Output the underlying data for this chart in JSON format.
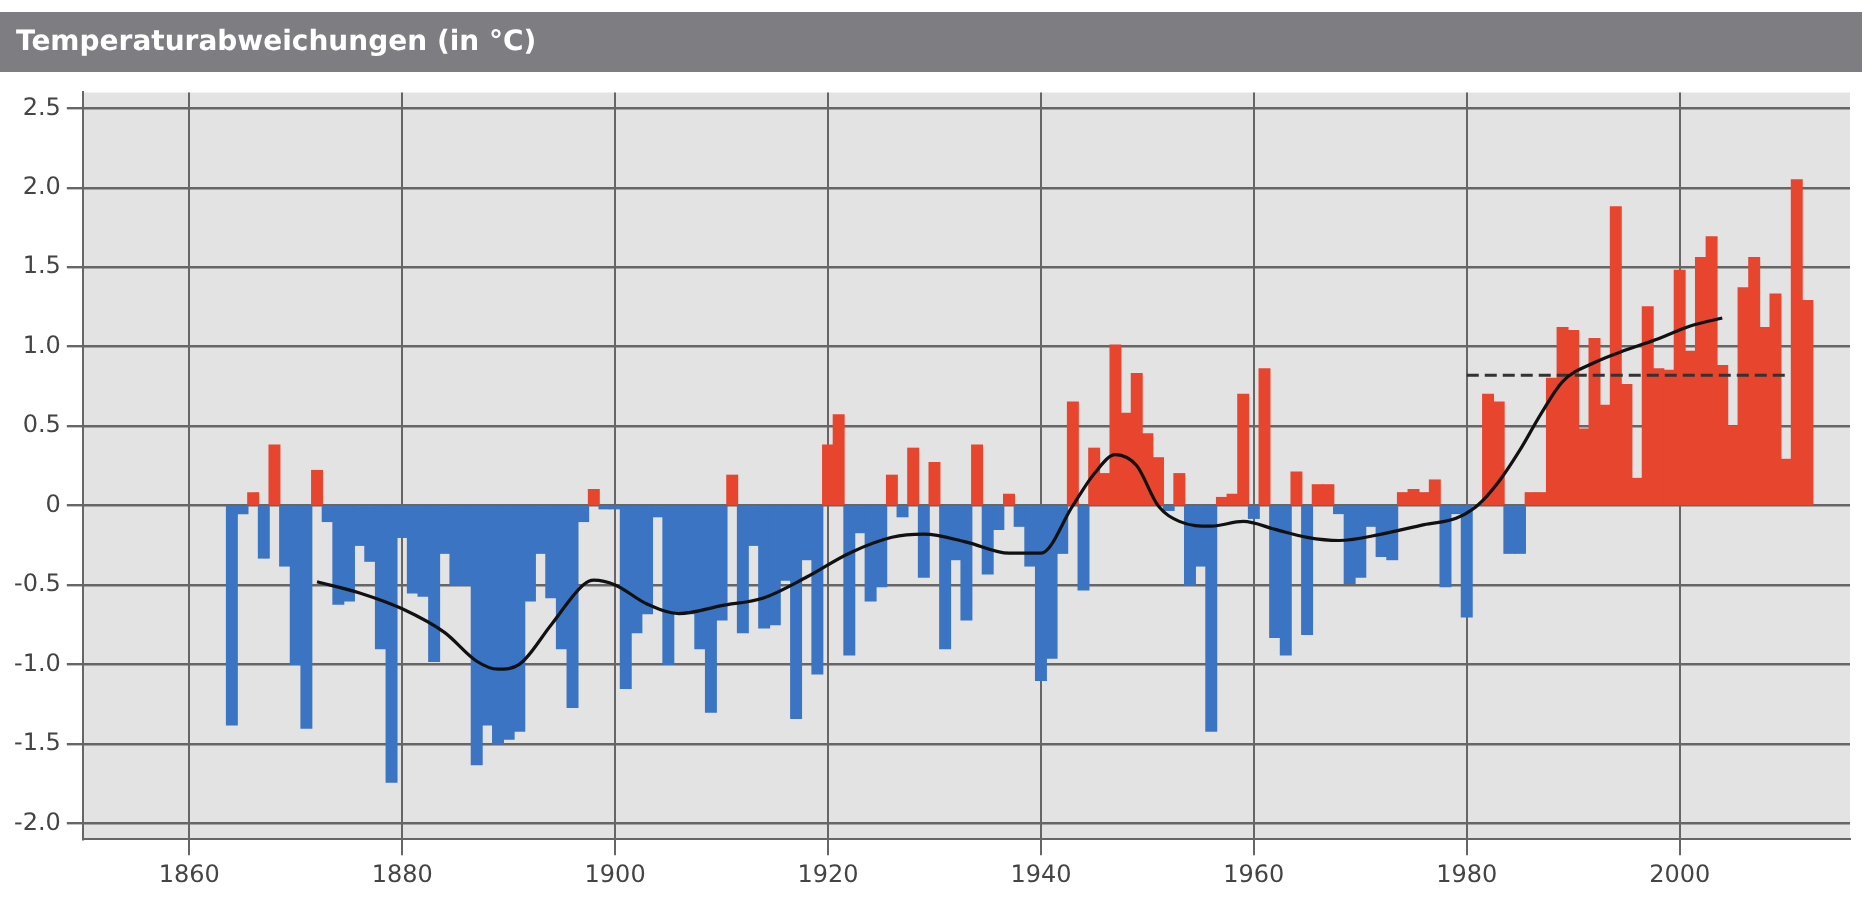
{
  "chart_data": {
    "type": "bar",
    "title": "Temperaturabweichungen (in °C)",
    "xlim": [
      1850,
      2016
    ],
    "xticks": [
      1860,
      1880,
      1900,
      1920,
      1940,
      1960,
      1980,
      2000
    ],
    "ylim": [
      -2.1,
      2.6
    ],
    "yticks": [
      {
        "value": -2,
        "label": "-2.0"
      },
      -1.5,
      {
        "value": -1,
        "label": "-1.0"
      },
      -0.5,
      0,
      0.5,
      {
        "value": 1,
        "label": "1.0"
      },
      1.5,
      {
        "value": 2,
        "label": "2.0"
      },
      2.5
    ],
    "grid": true,
    "legend": false,
    "marker": "none",
    "series": [
      {
        "x": [
          1864,
          1865,
          1866,
          1867,
          1868,
          1869,
          1870,
          1871,
          1872,
          1873,
          1874,
          1875,
          1876,
          1877,
          1878,
          1879,
          1880,
          1881,
          1882,
          1883,
          1884,
          1885,
          1886,
          1887,
          1888,
          1889,
          1890,
          1891,
          1892,
          1893,
          1894,
          1895,
          1896,
          1897,
          1898,
          1899,
          1900,
          1901,
          1902,
          1903,
          1904,
          1905,
          1906,
          1907,
          1908,
          1909,
          1910,
          1911,
          1912,
          1913,
          1914,
          1915,
          1916,
          1917,
          1918,
          1919,
          1920,
          1921,
          1922,
          1923,
          1924,
          1925,
          1926,
          1927,
          1928,
          1929,
          1930,
          1931,
          1932,
          1933,
          1934,
          1935,
          1936,
          1937,
          1938,
          1939,
          1940,
          1941,
          1942,
          1943,
          1944,
          1945,
          1946,
          1947,
          1948,
          1949,
          1950,
          1951,
          1952,
          1953,
          1954,
          1955,
          1956,
          1957,
          1958,
          1959,
          1960,
          1961,
          1962,
          1963,
          1964,
          1965,
          1966,
          1967,
          1968,
          1969,
          1970,
          1971,
          1972,
          1973,
          1974,
          1975,
          1976,
          1977,
          1978,
          1979,
          1980,
          1981,
          1982,
          1983,
          1984,
          1985,
          1986,
          1987,
          1988,
          1989,
          1990,
          1991,
          1992,
          1993,
          1994,
          1995,
          1996,
          1997,
          1998,
          1999,
          2000,
          2001,
          2002,
          2003,
          2004,
          2005,
          2006,
          2007,
          2008,
          2009,
          2010,
          2011,
          2012
        ],
        "values": [
          -1.38,
          -0.05,
          0.08,
          -0.33,
          0.38,
          -0.38,
          -1.0,
          -1.4,
          0.22,
          -0.1,
          -0.62,
          -0.6,
          -0.25,
          -0.35,
          -0.9,
          -1.74,
          -0.2,
          -0.55,
          -0.57,
          -0.98,
          -0.3,
          -0.5,
          -0.5,
          -1.63,
          -1.38,
          -1.5,
          -1.47,
          -1.42,
          -0.6,
          -0.3,
          -0.58,
          -0.9,
          -1.27,
          -0.1,
          0.1,
          -0.02,
          -0.02,
          -1.15,
          -0.8,
          -0.68,
          -0.07,
          -1.0,
          -0.68,
          -0.68,
          -0.9,
          -1.3,
          -0.72,
          0.19,
          -0.8,
          -0.25,
          -0.77,
          -0.75,
          -0.47,
          -1.34,
          -0.34,
          -1.06,
          0.38,
          0.57,
          -0.94,
          -0.17,
          -0.6,
          -0.51,
          0.19,
          -0.07,
          0.36,
          -0.45,
          0.27,
          -0.9,
          -0.34,
          -0.72,
          0.38,
          -0.43,
          -0.15,
          0.07,
          -0.13,
          -0.38,
          -1.1,
          -0.96,
          -0.3,
          0.65,
          -0.53,
          0.36,
          0.2,
          1.01,
          0.58,
          0.83,
          0.45,
          0.3,
          -0.03,
          0.2,
          -0.5,
          -0.38,
          -1.42,
          0.05,
          0.07,
          0.7,
          -0.08,
          0.86,
          -0.83,
          -0.94,
          0.21,
          -0.81,
          0.13,
          0.13,
          -0.05,
          -0.49,
          -0.45,
          -0.13,
          -0.32,
          -0.34,
          0.08,
          0.1,
          0.08,
          0.16,
          -0.51,
          -0.05,
          -0.7,
          null,
          0.7,
          0.65,
          -0.3,
          -0.3,
          0.08,
          0.08,
          0.8,
          1.12,
          1.1,
          0.48,
          1.05,
          0.63,
          1.88,
          0.76,
          0.17,
          1.25,
          0.86,
          0.85,
          1.48,
          0.97,
          1.56,
          1.69,
          0.88,
          0.5,
          1.37,
          1.56,
          1.12,
          1.33,
          0.29,
          2.05,
          1.29
        ],
        "colors": [
          "#3b74c2",
          "#3b74c2",
          "#e8452f",
          "#3b74c2",
          "#e8452f",
          "#3b74c2",
          "#3b74c2",
          "#3b74c2",
          "#e8452f",
          "#3b74c2",
          "#3b74c2",
          "#3b74c2",
          "#3b74c2",
          "#3b74c2",
          "#3b74c2",
          "#3b74c2",
          "#3b74c2",
          "#3b74c2",
          "#3b74c2",
          "#3b74c2",
          "#3b74c2",
          "#3b74c2",
          "#3b74c2",
          "#3b74c2",
          "#3b74c2",
          "#3b74c2",
          "#3b74c2",
          "#3b74c2",
          "#3b74c2",
          "#3b74c2",
          "#3b74c2",
          "#3b74c2",
          "#3b74c2",
          "#3b74c2",
          "#e8452f",
          "#3b74c2",
          "#3b74c2",
          "#3b74c2",
          "#3b74c2",
          "#3b74c2",
          "#3b74c2",
          "#3b74c2",
          "#3b74c2",
          "#3b74c2",
          "#3b74c2",
          "#3b74c2",
          "#3b74c2",
          "#e8452f",
          "#3b74c2",
          "#3b74c2",
          "#3b74c2",
          "#3b74c2",
          "#3b74c2",
          "#3b74c2",
          "#3b74c2",
          "#3b74c2",
          "#e8452f",
          "#e8452f",
          "#3b74c2",
          "#3b74c2",
          "#3b74c2",
          "#3b74c2",
          "#e8452f",
          "#3b74c2",
          "#e8452f",
          "#3b74c2",
          "#e8452f",
          "#3b74c2",
          "#3b74c2",
          "#3b74c2",
          "#e8452f",
          "#3b74c2",
          "#3b74c2",
          "#e8452f",
          "#3b74c2",
          "#3b74c2",
          "#3b74c2",
          "#3b74c2",
          "#3b74c2",
          "#e8452f",
          "#3b74c2",
          "#e8452f",
          "#e8452f",
          "#e8452f",
          "#e8452f",
          "#e8452f",
          "#e8452f",
          "#e8452f",
          "#3b74c2",
          "#e8452f",
          "#3b74c2",
          "#3b74c2",
          "#3b74c2",
          "#e8452f",
          "#e8452f",
          "#e8452f",
          "#3b74c2",
          "#e8452f",
          "#3b74c2",
          "#3b74c2",
          "#e8452f",
          "#3b74c2",
          "#e8452f",
          "#e8452f",
          "#3b74c2",
          "#3b74c2",
          "#3b74c2",
          "#3b74c2",
          "#3b74c2",
          "#3b74c2",
          "#e8452f",
          "#e8452f",
          "#e8452f",
          "#e8452f",
          "#3b74c2",
          "#3b74c2",
          "#3b74c2",
          "#e8452f",
          "#e8452f",
          "#e8452f",
          "#3b74c2",
          "#3b74c2",
          "#e8452f",
          "#e8452f",
          "#e8452f",
          "#e8452f",
          "#e8452f",
          "#e8452f",
          "#e8452f",
          "#e8452f",
          "#e8452f",
          "#e8452f",
          "#e8452f",
          "#e8452f",
          "#e8452f",
          "#e8452f",
          "#e8452f",
          "#e8452f",
          "#e8452f",
          "#e8452f",
          "#e8452f",
          "#e8452f",
          "#e8452f",
          "#e8452f",
          "#e8452f",
          "#e8452f",
          "#e8452f",
          "#e8452f",
          "#e8452f"
        ]
      },
      {
        "type": "line",
        "color": "#111111",
        "line_style": "solid",
        "x": [
          1872,
          1876,
          1880,
          1884,
          1887,
          1889,
          1891,
          1894,
          1897,
          1898,
          1900,
          1903,
          1906,
          1910,
          1914,
          1918,
          1922,
          1926,
          1929,
          1933,
          1937,
          1940,
          1943,
          1945,
          1947,
          1949,
          1951,
          1953,
          1956,
          1959,
          1962,
          1965,
          1968,
          1972,
          1976,
          1979,
          1981,
          1983,
          1985,
          1987,
          1989,
          1992,
          1995,
          1998,
          2001,
          2004
        ],
        "values": [
          -0.48,
          -0.55,
          -0.65,
          -0.8,
          -0.98,
          -1.03,
          -1.0,
          -0.75,
          -0.5,
          -0.47,
          -0.5,
          -0.62,
          -0.68,
          -0.63,
          -0.58,
          -0.45,
          -0.3,
          -0.2,
          -0.18,
          -0.23,
          -0.3,
          -0.3,
          0.0,
          0.2,
          0.32,
          0.25,
          0.0,
          -0.1,
          -0.13,
          -0.1,
          -0.15,
          -0.2,
          -0.22,
          -0.18,
          -0.12,
          -0.08,
          0.0,
          0.15,
          0.35,
          0.58,
          0.78,
          0.9,
          0.98,
          1.05,
          1.13,
          1.18
        ]
      },
      {
        "type": "line",
        "color": "#333333",
        "line_style": "dashed",
        "x": [
          1980,
          2010
        ],
        "values": [
          0.82,
          0.82
        ]
      }
    ]
  }
}
